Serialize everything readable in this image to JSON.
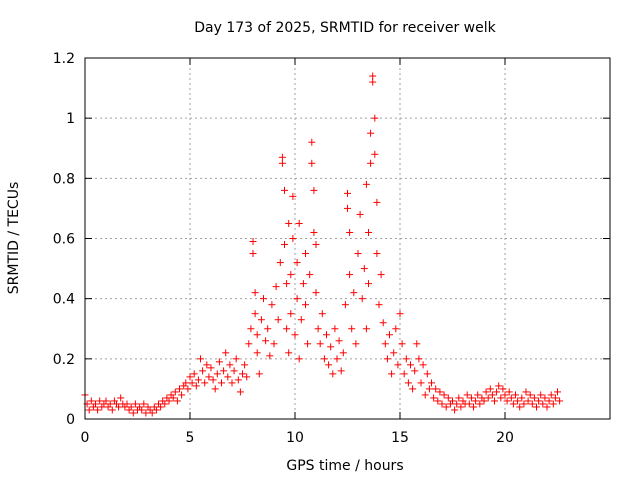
{
  "chart_data": {
    "type": "scatter",
    "title": "Day 173 of 2025, SRMTID for receiver welk",
    "xlabel": "GPS time / hours",
    "ylabel": "SRMTID / TECUs",
    "xlim": [
      0,
      25
    ],
    "ylim": [
      0,
      1.2
    ],
    "xticks": [
      0,
      5,
      10,
      15,
      20
    ],
    "xtick_labels": [
      "0",
      "5",
      "10",
      "15",
      "20"
    ],
    "yticks": [
      0,
      0.2,
      0.4,
      0.6,
      0.8,
      1.0,
      1.2
    ],
    "ytick_labels": [
      "0",
      "0.2",
      "0.4",
      "0.6",
      "0.8",
      "1",
      "1.2"
    ],
    "grid": true,
    "marker": "+",
    "series": [
      {
        "name": "SRMTID",
        "color": "#ff0000",
        "points": [
          [
            0.0,
            0.08
          ],
          [
            0.1,
            0.05
          ],
          [
            0.2,
            0.03
          ],
          [
            0.3,
            0.06
          ],
          [
            0.4,
            0.04
          ],
          [
            0.5,
            0.05
          ],
          [
            0.6,
            0.03
          ],
          [
            0.7,
            0.06
          ],
          [
            0.8,
            0.04
          ],
          [
            0.9,
            0.05
          ],
          [
            1.0,
            0.06
          ],
          [
            1.1,
            0.04
          ],
          [
            1.2,
            0.05
          ],
          [
            1.3,
            0.03
          ],
          [
            1.4,
            0.06
          ],
          [
            1.5,
            0.05
          ],
          [
            1.6,
            0.04
          ],
          [
            1.7,
            0.07
          ],
          [
            1.8,
            0.05
          ],
          [
            1.9,
            0.04
          ],
          [
            2.0,
            0.05
          ],
          [
            2.1,
            0.03
          ],
          [
            2.2,
            0.04
          ],
          [
            2.3,
            0.02
          ],
          [
            2.4,
            0.05
          ],
          [
            2.5,
            0.03
          ],
          [
            2.6,
            0.04
          ],
          [
            2.7,
            0.03
          ],
          [
            2.8,
            0.05
          ],
          [
            2.9,
            0.02
          ],
          [
            3.0,
            0.04
          ],
          [
            3.1,
            0.03
          ],
          [
            3.2,
            0.02
          ],
          [
            3.3,
            0.04
          ],
          [
            3.4,
            0.03
          ],
          [
            3.5,
            0.05
          ],
          [
            3.6,
            0.04
          ],
          [
            3.7,
            0.06
          ],
          [
            3.8,
            0.05
          ],
          [
            3.9,
            0.07
          ],
          [
            4.0,
            0.06
          ],
          [
            4.1,
            0.08
          ],
          [
            4.2,
            0.07
          ],
          [
            4.3,
            0.09
          ],
          [
            4.4,
            0.06
          ],
          [
            4.5,
            0.1
          ],
          [
            4.6,
            0.08
          ],
          [
            4.7,
            0.11
          ],
          [
            4.8,
            0.12
          ],
          [
            4.9,
            0.1
          ],
          [
            5.0,
            0.14
          ],
          [
            5.1,
            0.12
          ],
          [
            5.2,
            0.15
          ],
          [
            5.3,
            0.11
          ],
          [
            5.4,
            0.13
          ],
          [
            5.5,
            0.2
          ],
          [
            5.6,
            0.16
          ],
          [
            5.7,
            0.12
          ],
          [
            5.8,
            0.18
          ],
          [
            5.9,
            0.14
          ],
          [
            6.0,
            0.17
          ],
          [
            6.1,
            0.13
          ],
          [
            6.2,
            0.1
          ],
          [
            6.3,
            0.15
          ],
          [
            6.4,
            0.19
          ],
          [
            6.5,
            0.12
          ],
          [
            6.6,
            0.16
          ],
          [
            6.7,
            0.22
          ],
          [
            6.8,
            0.14
          ],
          [
            6.9,
            0.18
          ],
          [
            7.0,
            0.12
          ],
          [
            7.1,
            0.16
          ],
          [
            7.2,
            0.2
          ],
          [
            7.3,
            0.13
          ],
          [
            7.4,
            0.09
          ],
          [
            7.5,
            0.15
          ],
          [
            7.6,
            0.18
          ],
          [
            7.7,
            0.14
          ],
          [
            7.8,
            0.25
          ],
          [
            7.9,
            0.3
          ],
          [
            8.0,
            0.59
          ],
          [
            8.0,
            0.55
          ],
          [
            8.1,
            0.42
          ],
          [
            8.1,
            0.35
          ],
          [
            8.2,
            0.22
          ],
          [
            8.2,
            0.28
          ],
          [
            8.3,
            0.15
          ],
          [
            8.4,
            0.33
          ],
          [
            8.5,
            0.4
          ],
          [
            8.6,
            0.26
          ],
          [
            8.7,
            0.3
          ],
          [
            8.8,
            0.21
          ],
          [
            8.9,
            0.38
          ],
          [
            9.0,
            0.25
          ],
          [
            9.1,
            0.44
          ],
          [
            9.2,
            0.33
          ],
          [
            9.3,
            0.52
          ],
          [
            9.4,
            0.87
          ],
          [
            9.4,
            0.85
          ],
          [
            9.5,
            0.76
          ],
          [
            9.5,
            0.58
          ],
          [
            9.6,
            0.45
          ],
          [
            9.6,
            0.3
          ],
          [
            9.7,
            0.65
          ],
          [
            9.7,
            0.22
          ],
          [
            9.8,
            0.48
          ],
          [
            9.8,
            0.35
          ],
          [
            9.9,
            0.74
          ],
          [
            9.9,
            0.6
          ],
          [
            10.0,
            0.28
          ],
          [
            10.1,
            0.52
          ],
          [
            10.1,
            0.4
          ],
          [
            10.2,
            0.65
          ],
          [
            10.2,
            0.2
          ],
          [
            10.3,
            0.33
          ],
          [
            10.4,
            0.45
          ],
          [
            10.5,
            0.55
          ],
          [
            10.5,
            0.38
          ],
          [
            10.6,
            0.25
          ],
          [
            10.7,
            0.48
          ],
          [
            10.8,
            0.92
          ],
          [
            10.8,
            0.85
          ],
          [
            10.9,
            0.76
          ],
          [
            10.9,
            0.62
          ],
          [
            11.0,
            0.58
          ],
          [
            11.0,
            0.42
          ],
          [
            11.1,
            0.3
          ],
          [
            11.2,
            0.25
          ],
          [
            11.3,
            0.35
          ],
          [
            11.4,
            0.2
          ],
          [
            11.5,
            0.28
          ],
          [
            11.6,
            0.18
          ],
          [
            11.7,
            0.24
          ],
          [
            11.8,
            0.15
          ],
          [
            11.9,
            0.3
          ],
          [
            12.0,
            0.2
          ],
          [
            12.1,
            0.26
          ],
          [
            12.2,
            0.16
          ],
          [
            12.3,
            0.22
          ],
          [
            12.4,
            0.38
          ],
          [
            12.5,
            0.75
          ],
          [
            12.5,
            0.7
          ],
          [
            12.6,
            0.62
          ],
          [
            12.6,
            0.48
          ],
          [
            12.7,
            0.3
          ],
          [
            12.8,
            0.42
          ],
          [
            12.9,
            0.25
          ],
          [
            13.0,
            0.55
          ],
          [
            13.1,
            0.68
          ],
          [
            13.2,
            0.4
          ],
          [
            13.3,
            0.5
          ],
          [
            13.4,
            0.78
          ],
          [
            13.4,
            0.3
          ],
          [
            13.5,
            0.62
          ],
          [
            13.5,
            0.45
          ],
          [
            13.6,
            0.95
          ],
          [
            13.6,
            0.85
          ],
          [
            13.7,
            1.14
          ],
          [
            13.7,
            1.12
          ],
          [
            13.8,
            1.0
          ],
          [
            13.8,
            0.88
          ],
          [
            13.9,
            0.72
          ],
          [
            13.9,
            0.55
          ],
          [
            14.0,
            0.38
          ],
          [
            14.1,
            0.48
          ],
          [
            14.2,
            0.32
          ],
          [
            14.3,
            0.25
          ],
          [
            14.4,
            0.2
          ],
          [
            14.5,
            0.28
          ],
          [
            14.6,
            0.15
          ],
          [
            14.7,
            0.22
          ],
          [
            14.8,
            0.3
          ],
          [
            14.9,
            0.18
          ],
          [
            15.0,
            0.35
          ],
          [
            15.1,
            0.25
          ],
          [
            15.2,
            0.15
          ],
          [
            15.3,
            0.2
          ],
          [
            15.4,
            0.12
          ],
          [
            15.5,
            0.18
          ],
          [
            15.6,
            0.1
          ],
          [
            15.7,
            0.16
          ],
          [
            15.8,
            0.25
          ],
          [
            15.9,
            0.2
          ],
          [
            16.0,
            0.12
          ],
          [
            16.1,
            0.18
          ],
          [
            16.2,
            0.08
          ],
          [
            16.3,
            0.15
          ],
          [
            16.4,
            0.1
          ],
          [
            16.5,
            0.12
          ],
          [
            16.6,
            0.07
          ],
          [
            16.7,
            0.1
          ],
          [
            16.8,
            0.06
          ],
          [
            16.9,
            0.09
          ],
          [
            17.0,
            0.05
          ],
          [
            17.1,
            0.08
          ],
          [
            17.2,
            0.04
          ],
          [
            17.3,
            0.07
          ],
          [
            17.4,
            0.05
          ],
          [
            17.5,
            0.06
          ],
          [
            17.6,
            0.03
          ],
          [
            17.7,
            0.05
          ],
          [
            17.8,
            0.07
          ],
          [
            17.9,
            0.04
          ],
          [
            18.0,
            0.06
          ],
          [
            18.1,
            0.05
          ],
          [
            18.2,
            0.08
          ],
          [
            18.3,
            0.05
          ],
          [
            18.4,
            0.07
          ],
          [
            18.5,
            0.04
          ],
          [
            18.6,
            0.06
          ],
          [
            18.7,
            0.08
          ],
          [
            18.8,
            0.05
          ],
          [
            18.9,
            0.07
          ],
          [
            19.0,
            0.06
          ],
          [
            19.1,
            0.09
          ],
          [
            19.2,
            0.07
          ],
          [
            19.3,
            0.1
          ],
          [
            19.4,
            0.08
          ],
          [
            19.5,
            0.06
          ],
          [
            19.6,
            0.09
          ],
          [
            19.7,
            0.11
          ],
          [
            19.8,
            0.07
          ],
          [
            19.9,
            0.1
          ],
          [
            20.0,
            0.08
          ],
          [
            20.1,
            0.06
          ],
          [
            20.2,
            0.09
          ],
          [
            20.3,
            0.07
          ],
          [
            20.4,
            0.05
          ],
          [
            20.5,
            0.08
          ],
          [
            20.6,
            0.06
          ],
          [
            20.7,
            0.04
          ],
          [
            20.8,
            0.07
          ],
          [
            20.9,
            0.05
          ],
          [
            21.0,
            0.09
          ],
          [
            21.1,
            0.06
          ],
          [
            21.2,
            0.08
          ],
          [
            21.3,
            0.05
          ],
          [
            21.4,
            0.07
          ],
          [
            21.5,
            0.04
          ],
          [
            21.6,
            0.06
          ],
          [
            21.7,
            0.08
          ],
          [
            21.8,
            0.05
          ],
          [
            21.9,
            0.07
          ],
          [
            22.0,
            0.04
          ],
          [
            22.1,
            0.06
          ],
          [
            22.2,
            0.08
          ],
          [
            22.3,
            0.05
          ],
          [
            22.4,
            0.07
          ],
          [
            22.5,
            0.09
          ],
          [
            22.6,
            0.06
          ]
        ]
      }
    ]
  }
}
